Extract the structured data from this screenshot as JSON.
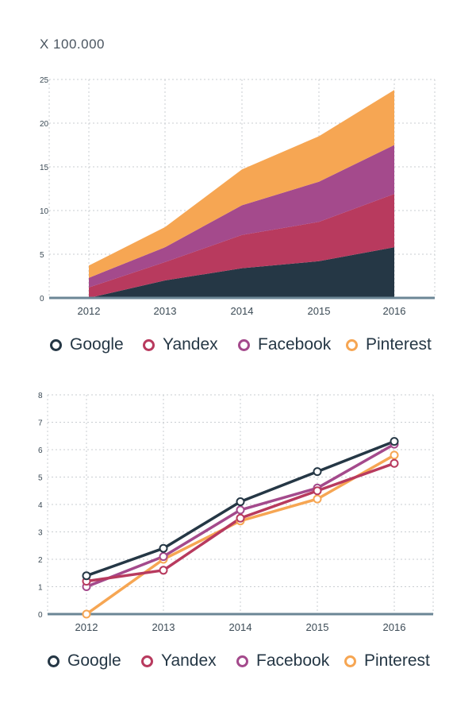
{
  "chart_data": [
    {
      "type": "area",
      "stacked": true,
      "title": "",
      "unit_label": "X 100.000",
      "x": [
        "2012",
        "2013",
        "2014",
        "2015",
        "2016"
      ],
      "ylim": [
        0,
        25
      ],
      "yticks": [
        0,
        5,
        10,
        15,
        20,
        25
      ],
      "grid": true,
      "legend_position": "bottom",
      "series": [
        {
          "name": "Google",
          "color": "#253745",
          "values": [
            0.0,
            2.0,
            3.4,
            4.2,
            5.8
          ]
        },
        {
          "name": "Yandex",
          "color": "#b83a5e",
          "values": [
            1.2,
            2.1,
            3.8,
            4.5,
            6.1
          ]
        },
        {
          "name": "Facebook",
          "color": "#a44a8c",
          "values": [
            1.1,
            1.7,
            3.4,
            4.6,
            5.6
          ]
        },
        {
          "name": "Pinterest",
          "color": "#f6a653",
          "values": [
            1.4,
            2.3,
            4.1,
            5.2,
            6.3
          ]
        }
      ]
    },
    {
      "type": "line",
      "title": "",
      "x": [
        "2012",
        "2013",
        "2014",
        "2015",
        "2016"
      ],
      "ylim": [
        0,
        8
      ],
      "yticks": [
        0,
        1,
        2,
        3,
        4,
        5,
        6,
        7,
        8
      ],
      "grid": true,
      "legend_position": "bottom",
      "series": [
        {
          "name": "Google",
          "color": "#253745",
          "values": [
            1.4,
            2.4,
            4.1,
            5.2,
            6.3
          ]
        },
        {
          "name": "Yandex",
          "color": "#b83a5e",
          "values": [
            1.2,
            1.6,
            3.5,
            4.5,
            5.5
          ]
        },
        {
          "name": "Facebook",
          "color": "#a44a8c",
          "values": [
            1.0,
            2.1,
            3.8,
            4.6,
            6.2
          ]
        },
        {
          "name": "Pinterest",
          "color": "#f6a653",
          "values": [
            0.0,
            2.0,
            3.4,
            4.2,
            5.8
          ]
        }
      ]
    }
  ],
  "legend1": [
    "Google",
    "Yandex",
    "Facebook",
    "Pinterest"
  ],
  "legend2": [
    "Google",
    "Yandex",
    "Facebook",
    "Pinterest"
  ]
}
